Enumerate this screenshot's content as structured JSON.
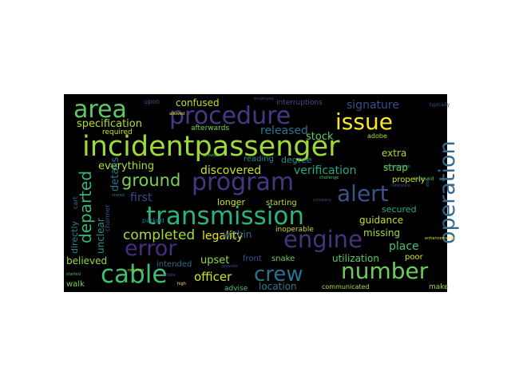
{
  "words": [
    {
      "text": "incidentpassenger",
      "color": "#9ed93a"
    },
    {
      "text": "transmission",
      "color": "#2db27d"
    },
    {
      "text": "procedure",
      "color": "#443a83"
    },
    {
      "text": "program",
      "color": "#453781"
    },
    {
      "text": "operation",
      "color": "#31688e"
    },
    {
      "text": "cable",
      "color": "#42be71"
    },
    {
      "text": "error",
      "color": "#472f7d"
    },
    {
      "text": "engine",
      "color": "#46337e"
    },
    {
      "text": "number",
      "color": "#6ccd5a"
    },
    {
      "text": "crew",
      "color": "#2d718e"
    },
    {
      "text": "alert",
      "color": "#3b528b"
    },
    {
      "text": "area",
      "color": "#5ec962"
    },
    {
      "text": "issue",
      "color": "#fde725"
    },
    {
      "text": "departed",
      "color": "#35b779"
    },
    {
      "text": "ground",
      "color": "#7ad151"
    },
    {
      "text": "completed",
      "color": "#a5db36"
    },
    {
      "text": "signature",
      "color": "#3e4c8a"
    },
    {
      "text": "discovered",
      "color": "#c8e020"
    },
    {
      "text": "verification",
      "color": "#22a884"
    },
    {
      "text": "released",
      "color": "#2c728e"
    },
    {
      "text": "specification",
      "color": "#b5de2b"
    },
    {
      "text": "confused",
      "color": "#bddf26"
    },
    {
      "text": "everything",
      "color": "#addc30"
    },
    {
      "text": "guidance",
      "color": "#bddf26"
    },
    {
      "text": "location",
      "color": "#2a788e"
    },
    {
      "text": "officer",
      "color": "#d2e21b"
    },
    {
      "text": "legality",
      "color": "#e5e419"
    },
    {
      "text": "unclear",
      "color": "#21918c"
    },
    {
      "text": "missing",
      "color": "#9fda3a"
    },
    {
      "text": "within",
      "color": "#2f6b8e"
    },
    {
      "text": "first",
      "color": "#3f4889"
    },
    {
      "text": "strap",
      "color": "#75d054"
    },
    {
      "text": "extra",
      "color": "#a8db34"
    },
    {
      "text": "secured",
      "color": "#26ad81"
    },
    {
      "text": "place",
      "color": "#4ac16d"
    },
    {
      "text": "upset",
      "color": "#90d743"
    },
    {
      "text": "details",
      "color": "#2c738e"
    },
    {
      "text": "directly",
      "color": "#25848e"
    },
    {
      "text": "believed",
      "color": "#95d840"
    },
    {
      "text": "utilization",
      "color": "#5cc863"
    },
    {
      "text": "stock",
      "color": "#63cb5f"
    },
    {
      "text": "reading",
      "color": "#24868e"
    },
    {
      "text": "degree",
      "color": "#228c8d"
    },
    {
      "text": "properly",
      "color": "#cae11f"
    },
    {
      "text": "longer",
      "color": "#dae319"
    },
    {
      "text": "starting",
      "color": "#b8de29"
    },
    {
      "text": "walk",
      "color": "#70cf57"
    },
    {
      "text": "intended",
      "color": "#2f6c8e"
    },
    {
      "text": "front",
      "color": "#3b528b"
    },
    {
      "text": "snake",
      "color": "#6ece58"
    },
    {
      "text": "poor",
      "color": "#d8e219"
    },
    {
      "text": "advise",
      "color": "#48c16e"
    },
    {
      "text": "make",
      "color": "#9ad93c"
    },
    {
      "text": "interruptions",
      "color": "#3a548c"
    },
    {
      "text": "required",
      "color": "#d0e11c"
    },
    {
      "text": "afterwards",
      "color": "#7fd34e"
    },
    {
      "text": "adobe",
      "color": "#b2dd2d"
    },
    {
      "text": "inoperable",
      "color": "#c2df23"
    },
    {
      "text": "communicated",
      "color": "#addc30"
    },
    {
      "text": "upon",
      "color": "#39568c"
    },
    {
      "text": "charmer",
      "color": "#3c4f8a"
    },
    {
      "text": "parked",
      "color": "#2b748e"
    },
    {
      "text": "cart",
      "color": "#2e6f8e"
    },
    {
      "text": "typically",
      "color": "#3d4e8a"
    },
    {
      "text": "employee",
      "color": "#404688"
    },
    {
      "text": "inbound",
      "color": "#6ccd5a"
    },
    {
      "text": "challenge",
      "color": "#48c16e"
    },
    {
      "text": "company",
      "color": "#3e4a89"
    },
    {
      "text": "enhancements",
      "color": "#d8e219"
    },
    {
      "text": "presentation",
      "color": "#1fa088"
    },
    {
      "text": "stated",
      "color": "#2c728e"
    },
    {
      "text": "started",
      "color": "#42be71"
    },
    {
      "text": "provoke",
      "color": "#3e4a89"
    },
    {
      "text": "high",
      "color": "#fde725"
    },
    {
      "text": "multiple",
      "color": "#3b528b"
    },
    {
      "text": "requires",
      "color": "#addc30"
    },
    {
      "text": "stop",
      "color": "#2a788e"
    },
    {
      "text": "provide",
      "color": "#5ec962"
    },
    {
      "text": "reference",
      "color": "#39568c"
    },
    {
      "text": "allowed",
      "color": "#f1e51d"
    }
  ]
}
